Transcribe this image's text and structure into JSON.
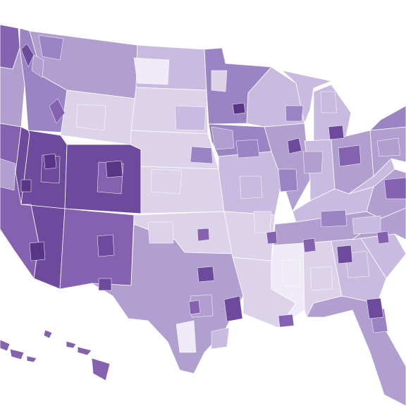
{
  "map": {
    "type": "choropleth",
    "palette": {
      "background": "#ffffff",
      "boundary": "#ffffff",
      "level_1": "#efebf6",
      "level_2": "#dcd3ea",
      "level_3": "#c9bbdf",
      "level_4": "#b1a0cf",
      "level_5": "#9b84c3",
      "level_6": "#8562b0",
      "level_7": "#6e4a9c",
      "level_8": "#5a3586"
    },
    "states": [
      {
        "id": "WA",
        "level": 6
      },
      {
        "id": "OR",
        "level": 4
      },
      {
        "id": "CA",
        "level": 6
      },
      {
        "id": "NV",
        "level": 7
      },
      {
        "id": "ID",
        "level": 5
      },
      {
        "id": "MT",
        "level": 4
      },
      {
        "id": "WY",
        "level": 2
      },
      {
        "id": "UT",
        "level": 7
      },
      {
        "id": "CO",
        "level": 7
      },
      {
        "id": "AZ",
        "level": 7
      },
      {
        "id": "NM",
        "level": 6
      },
      {
        "id": "ND",
        "level": 3
      },
      {
        "id": "SD",
        "level": 2
      },
      {
        "id": "NE",
        "level": 2
      },
      {
        "id": "KS",
        "level": 2
      },
      {
        "id": "OK",
        "level": 2
      },
      {
        "id": "TX",
        "level": 4
      },
      {
        "id": "MN",
        "level": 5
      },
      {
        "id": "IA",
        "level": 5
      },
      {
        "id": "MO",
        "level": 3
      },
      {
        "id": "AR",
        "level": 2
      },
      {
        "id": "LA",
        "level": 2
      },
      {
        "id": "WI",
        "level": 3
      },
      {
        "id": "IL",
        "level": 4
      },
      {
        "id": "MS",
        "level": 1
      },
      {
        "id": "MI",
        "level": 3
      },
      {
        "id": "IN",
        "level": 3
      },
      {
        "id": "KY",
        "level": 3
      },
      {
        "id": "TN",
        "level": 4
      },
      {
        "id": "AL",
        "level": 2
      },
      {
        "id": "OH",
        "level": 4
      },
      {
        "id": "GA",
        "level": 3
      },
      {
        "id": "FL",
        "level": 4
      },
      {
        "id": "SC",
        "level": 3
      },
      {
        "id": "NC",
        "level": 4
      },
      {
        "id": "VA",
        "level": 4
      },
      {
        "id": "WV",
        "level": 3
      },
      {
        "id": "PA",
        "level": 4
      },
      {
        "id": "NY",
        "level": 5
      },
      {
        "id": "HI",
        "level": 6
      }
    ],
    "hotspots": [
      {
        "id": "minneapolis",
        "level": 8
      },
      {
        "id": "chicago",
        "level": 7
      },
      {
        "id": "detroit",
        "level": 7
      },
      {
        "id": "denver",
        "level": 8
      },
      {
        "id": "salt-lake",
        "level": 8
      },
      {
        "id": "las-vegas",
        "level": 8
      },
      {
        "id": "phoenix",
        "level": 8
      },
      {
        "id": "albuquerque",
        "level": 7
      },
      {
        "id": "dallas",
        "level": 7
      },
      {
        "id": "houston",
        "level": 7
      },
      {
        "id": "austin",
        "level": 6
      },
      {
        "id": "atlanta",
        "level": 7
      },
      {
        "id": "orlando",
        "level": 7
      },
      {
        "id": "nashville",
        "level": 6
      },
      {
        "id": "charlotte",
        "level": 6
      },
      {
        "id": "el-paso",
        "level": 7
      },
      {
        "id": "new-orleans",
        "level": 6
      },
      {
        "id": "memphis",
        "level": 6
      },
      {
        "id": "okc",
        "level": 6
      }
    ]
  }
}
